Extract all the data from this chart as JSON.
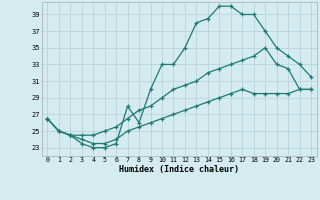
{
  "xlabel": "Humidex (Indice chaleur)",
  "xlim": [
    -0.5,
    23.5
  ],
  "ylim": [
    22.0,
    40.5
  ],
  "yticks": [
    23,
    25,
    27,
    29,
    31,
    33,
    35,
    37,
    39
  ],
  "xticks": [
    0,
    1,
    2,
    3,
    4,
    5,
    6,
    7,
    8,
    9,
    10,
    11,
    12,
    13,
    14,
    15,
    16,
    17,
    18,
    19,
    20,
    21,
    22,
    23
  ],
  "bg_color": "#d4ecf0",
  "grid_color": "#b8d5db",
  "line_color": "#1f7872",
  "line1_x": [
    0,
    1,
    2,
    3,
    4,
    5,
    6,
    7,
    8,
    9,
    10,
    11,
    12,
    13,
    14,
    15,
    16,
    17,
    18,
    19,
    20,
    21,
    22,
    23
  ],
  "line1_y": [
    26.5,
    25.0,
    24.5,
    23.5,
    23.0,
    23.0,
    23.5,
    28.0,
    26.0,
    30.0,
    33.0,
    33.0,
    35.0,
    38.0,
    38.5,
    40.0,
    40.0,
    39.0,
    39.0,
    37.0,
    35.0,
    34.0,
    33.0,
    31.5
  ],
  "line2_x": [
    0,
    1,
    2,
    3,
    4,
    5,
    6,
    7,
    8,
    9,
    10,
    11,
    12,
    13,
    14,
    15,
    16,
    17,
    18,
    19,
    20,
    21,
    22,
    23
  ],
  "line2_y": [
    26.5,
    25.0,
    24.5,
    24.5,
    24.5,
    25.0,
    25.5,
    26.5,
    27.5,
    28.0,
    29.0,
    30.0,
    30.5,
    31.0,
    32.0,
    32.5,
    33.0,
    33.5,
    34.0,
    35.0,
    33.0,
    32.5,
    30.0,
    30.0
  ],
  "line3_x": [
    0,
    1,
    2,
    3,
    4,
    5,
    6,
    7,
    8,
    9,
    10,
    11,
    12,
    13,
    14,
    15,
    16,
    17,
    18,
    19,
    20,
    21,
    22,
    23
  ],
  "line3_y": [
    26.5,
    25.0,
    24.5,
    24.0,
    23.5,
    23.5,
    24.0,
    25.0,
    25.5,
    26.0,
    26.5,
    27.0,
    27.5,
    28.0,
    28.5,
    29.0,
    29.5,
    30.0,
    29.5,
    29.5,
    29.5,
    29.5,
    30.0,
    30.0
  ]
}
